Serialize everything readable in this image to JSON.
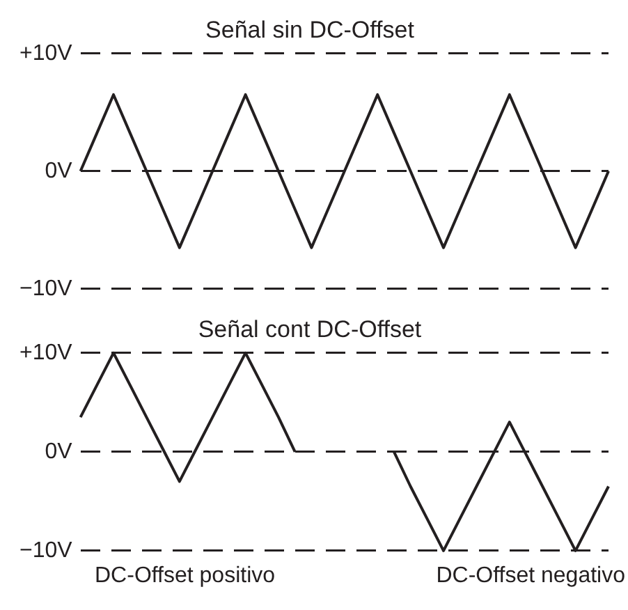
{
  "chart_data": [
    {
      "type": "line",
      "title": "Señal sin DC-Offset",
      "categories": [
        null,
        null,
        null,
        null,
        null,
        null,
        null,
        null,
        null,
        null,
        null,
        null,
        null,
        null,
        null,
        null,
        null,
        null,
        null,
        null,
        null,
        null,
        null,
        null,
        null,
        null,
        null,
        null,
        null,
        null,
        null,
        null,
        null
      ],
      "ylim": [
        -10,
        10
      ],
      "yticks": [
        {
          "value": 10,
          "label": "+10V"
        },
        {
          "value": 0,
          "label": "0V"
        },
        {
          "value": -10,
          "label": "−10V"
        }
      ],
      "tick_labels": "y",
      "grid": "y",
      "legend": false,
      "marker": "none",
      "line_style": "solid",
      "series": [
        {
          "color": "#231f20",
          "values": [
            0,
            3.25,
            6.5,
            3.25,
            0,
            -3.25,
            -6.5,
            -3.25,
            0,
            3.25,
            6.5,
            3.25,
            0,
            -3.25,
            -6.5,
            -3.25,
            0,
            3.25,
            6.5,
            3.25,
            0,
            -3.25,
            -6.5,
            -3.25,
            0,
            3.25,
            6.5,
            3.25,
            0,
            -3.25,
            -6.5,
            -3.25,
            0
          ]
        }
      ]
    },
    {
      "type": "line",
      "title": "Señal cont DC-Offset",
      "categories": [
        null,
        null,
        null,
        null,
        null,
        null,
        null,
        null,
        null,
        null,
        null,
        null,
        null,
        null,
        null,
        null,
        null,
        null,
        null,
        null,
        null,
        null,
        null,
        null,
        null,
        null,
        null,
        null,
        null,
        null,
        null,
        null,
        null
      ],
      "ylim": [
        -10,
        10
      ],
      "yticks": [
        {
          "value": 10,
          "label": "+10V"
        },
        {
          "value": 0,
          "label": "0V"
        },
        {
          "value": -10,
          "label": "−10V"
        }
      ],
      "tick_labels": "y",
      "grid": "y",
      "legend": false,
      "marker": "none",
      "line_style": "solid",
      "annotations": [
        "DC-Offset positivo",
        "DC-Offset negativo"
      ],
      "series": [
        {
          "color": "#231f20",
          "values": [
            3.5,
            6.75,
            10,
            6.75,
            3.5,
            0.25,
            -3,
            0.25,
            3.5,
            6.75,
            10,
            6.75,
            3.5,
            0,
            null,
            null,
            null,
            null,
            null,
            null,
            null,
            null,
            null,
            null,
            null,
            null,
            null,
            null,
            null,
            null,
            null,
            null,
            null
          ]
        },
        {
          "color": "#231f20",
          "values": [
            null,
            null,
            null,
            null,
            null,
            null,
            null,
            null,
            null,
            null,
            null,
            null,
            null,
            null,
            null,
            null,
            null,
            null,
            null,
            0,
            -3.5,
            -6.75,
            -10,
            -6.75,
            -3.5,
            -0.25,
            3,
            -0.25,
            -3.5,
            -6.75,
            -10,
            -6.75,
            -3.5
          ]
        }
      ]
    }
  ]
}
